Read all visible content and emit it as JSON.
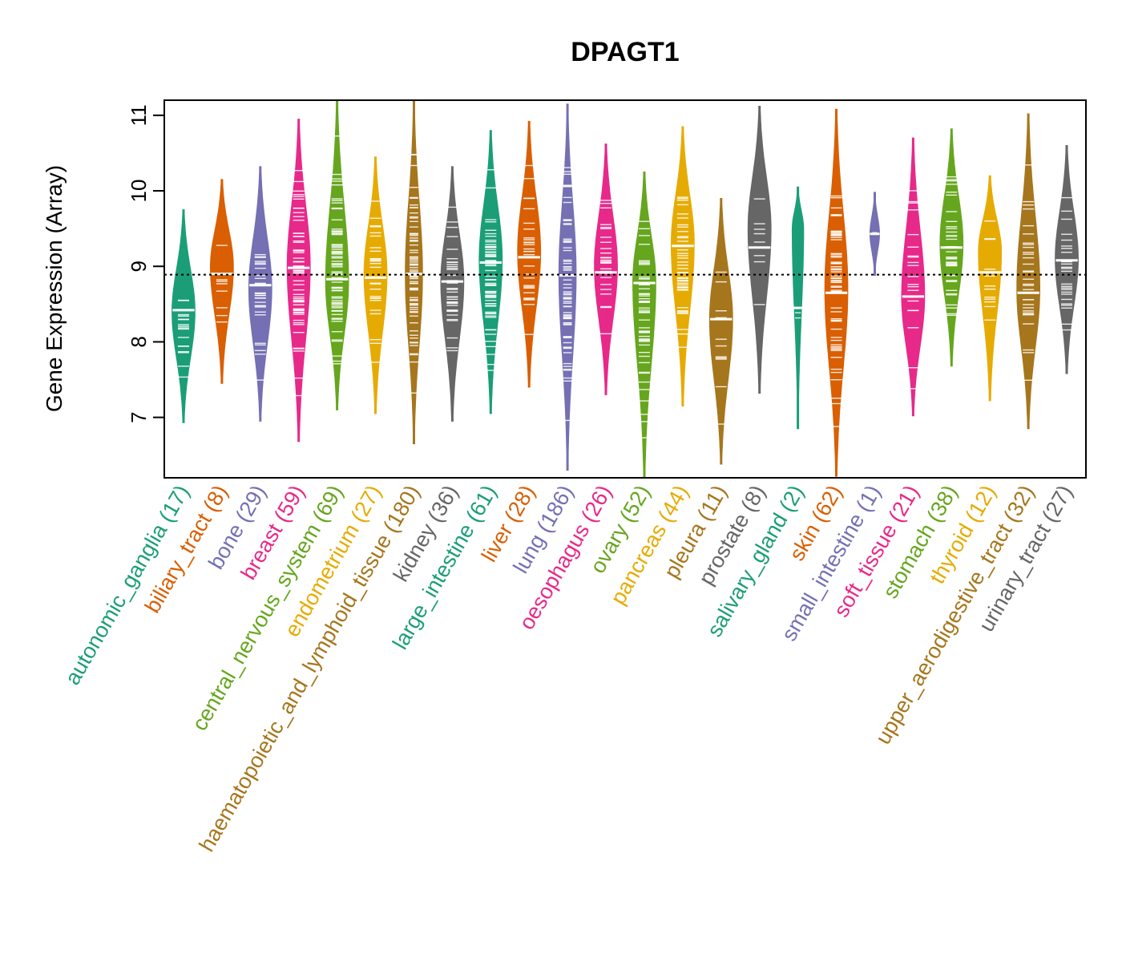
{
  "chart_data": {
    "type": "violin",
    "title": "DPAGT1",
    "ylabel": "Gene Expression (Array)",
    "xlabel": "",
    "ylim": [
      6.2,
      11.2
    ],
    "yticks": [
      7,
      8,
      9,
      10,
      11
    ],
    "reference_line": 8.89,
    "categories": [
      {
        "name": "autonomic_ganglia",
        "n": "17",
        "label": "autonomic_ganglia (17)",
        "color": "#1B9E77",
        "min": 6.93,
        "max": 9.75,
        "median": 8.42,
        "peak": 8.4,
        "width": 0.6
      },
      {
        "name": "biliary_tract",
        "n": "8",
        "label": "biliary_tract (8)",
        "color": "#D95F02",
        "min": 7.45,
        "max": 10.15,
        "median": 8.9,
        "peak": 9.0,
        "width": 0.6
      },
      {
        "name": "bone",
        "n": "29",
        "label": "bone (29)",
        "color": "#7570B3",
        "min": 6.95,
        "max": 10.32,
        "median": 8.75,
        "peak": 8.7,
        "width": 0.6
      },
      {
        "name": "breast",
        "n": "59",
        "label": "breast (59)",
        "color": "#E7298A",
        "min": 6.68,
        "max": 10.95,
        "median": 8.98,
        "peak": 9.0,
        "width": 0.6
      },
      {
        "name": "central_nervous_system",
        "n": "69",
        "label": "central_nervous_system (69)",
        "color": "#66A61E",
        "min": 7.1,
        "max": 11.2,
        "median": 8.83,
        "peak": 8.8,
        "width": 0.6
      },
      {
        "name": "endometrium",
        "n": "27",
        "label": "endometrium (27)",
        "color": "#E6AB02",
        "min": 7.05,
        "max": 10.45,
        "median": 8.85,
        "peak": 8.9,
        "width": 0.6
      },
      {
        "name": "haematopoietic_and_lymphoid_tissue",
        "n": "180",
        "label": "haematopoietic_and_lymphoid_tissue (180)",
        "color": "#A6761D",
        "min": 6.65,
        "max": 11.2,
        "median": 8.9,
        "peak": 8.9,
        "width": 0.45
      },
      {
        "name": "kidney",
        "n": "36",
        "label": "kidney (36)",
        "color": "#666666",
        "min": 6.95,
        "max": 10.32,
        "median": 8.8,
        "peak": 8.8,
        "width": 0.6
      },
      {
        "name": "large_intestine",
        "n": "61",
        "label": "large_intestine (61)",
        "color": "#1B9E77",
        "min": 7.05,
        "max": 10.8,
        "median": 9.05,
        "peak": 9.1,
        "width": 0.6
      },
      {
        "name": "liver",
        "n": "28",
        "label": "liver (28)",
        "color": "#D95F02",
        "min": 7.4,
        "max": 10.92,
        "median": 9.12,
        "peak": 9.2,
        "width": 0.6
      },
      {
        "name": "lung",
        "n": "186",
        "label": "lung (186)",
        "color": "#7570B3",
        "min": 6.3,
        "max": 11.15,
        "median": 8.88,
        "peak": 8.9,
        "width": 0.45
      },
      {
        "name": "oesophagus",
        "n": "26",
        "label": "oesophagus (26)",
        "color": "#E7298A",
        "min": 7.3,
        "max": 10.62,
        "median": 8.92,
        "peak": 9.0,
        "width": 0.6
      },
      {
        "name": "ovary",
        "n": "52",
        "label": "ovary (52)",
        "color": "#66A61E",
        "min": 6.2,
        "max": 10.25,
        "median": 8.78,
        "peak": 8.8,
        "width": 0.6
      },
      {
        "name": "pancreas",
        "n": "44",
        "label": "pancreas (44)",
        "color": "#E6AB02",
        "min": 7.15,
        "max": 10.85,
        "median": 9.27,
        "peak": 9.3,
        "width": 0.6
      },
      {
        "name": "pleura",
        "n": "11",
        "label": "pleura (11)",
        "color": "#A6761D",
        "min": 6.38,
        "max": 9.9,
        "median": 8.3,
        "peak": 8.3,
        "width": 0.6
      },
      {
        "name": "prostate",
        "n": "8",
        "label": "prostate (8)",
        "color": "#666666",
        "min": 7.32,
        "max": 11.12,
        "median": 9.25,
        "peak": 9.5,
        "width": 0.6
      },
      {
        "name": "salivary_gland",
        "n": "2",
        "label": "salivary_gland (2)",
        "color": "#1B9E77",
        "min": 6.85,
        "max": 10.05,
        "median": 8.45,
        "peak": 9.5,
        "width": 0.3
      },
      {
        "name": "skin",
        "n": "62",
        "label": "skin (62)",
        "color": "#D95F02",
        "min": 6.22,
        "max": 11.08,
        "median": 8.65,
        "peak": 8.7,
        "width": 0.6
      },
      {
        "name": "small_intestine",
        "n": "1",
        "label": "small_intestine (1)",
        "color": "#7570B3",
        "min": 8.88,
        "max": 9.98,
        "median": 9.43,
        "peak": 9.43,
        "width": 0.25
      },
      {
        "name": "soft_tissue",
        "n": "21",
        "label": "soft_tissue (21)",
        "color": "#E7298A",
        "min": 7.02,
        "max": 10.7,
        "median": 8.6,
        "peak": 8.6,
        "width": 0.6
      },
      {
        "name": "stomach",
        "n": "38",
        "label": "stomach (38)",
        "color": "#66A61E",
        "min": 7.68,
        "max": 10.82,
        "median": 9.25,
        "peak": 9.3,
        "width": 0.6
      },
      {
        "name": "thyroid",
        "n": "12",
        "label": "thyroid (12)",
        "color": "#E6AB02",
        "min": 7.22,
        "max": 10.2,
        "median": 8.92,
        "peak": 9.2,
        "width": 0.6
      },
      {
        "name": "upper_aerodigestive_tract",
        "n": "32",
        "label": "upper_aerodigestive_tract (32)",
        "color": "#A6761D",
        "min": 6.85,
        "max": 11.02,
        "median": 8.65,
        "peak": 8.7,
        "width": 0.6
      },
      {
        "name": "urinary_tract",
        "n": "27",
        "label": "urinary_tract (27)",
        "color": "#666666",
        "min": 7.58,
        "max": 10.6,
        "median": 9.08,
        "peak": 9.1,
        "width": 0.6
      }
    ]
  }
}
